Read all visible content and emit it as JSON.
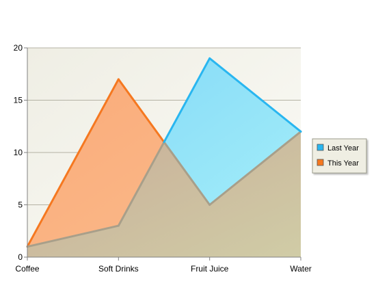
{
  "chart_data": {
    "type": "area",
    "title": "",
    "xlabel": "",
    "ylabel": "",
    "categories": [
      "Coffee",
      "Soft Drinks",
      "Fruit Juice",
      "Water"
    ],
    "ylim": [
      0,
      20
    ],
    "yticks": [
      0,
      5,
      10,
      15,
      20
    ],
    "grid": true,
    "legend_position": "right",
    "series": [
      {
        "name": "Last Year",
        "values": [
          1,
          3,
          19,
          12
        ],
        "color": "#29b6f0",
        "fill": "#8fdcf6"
      },
      {
        "name": "This Year",
        "values": [
          1,
          17,
          5,
          12
        ],
        "color": "#f57820",
        "fill": "#f9ae7c"
      }
    ],
    "overlap_fill": "#cbb596",
    "plot_background": [
      "#f0efe6",
      "#ffffff"
    ]
  }
}
